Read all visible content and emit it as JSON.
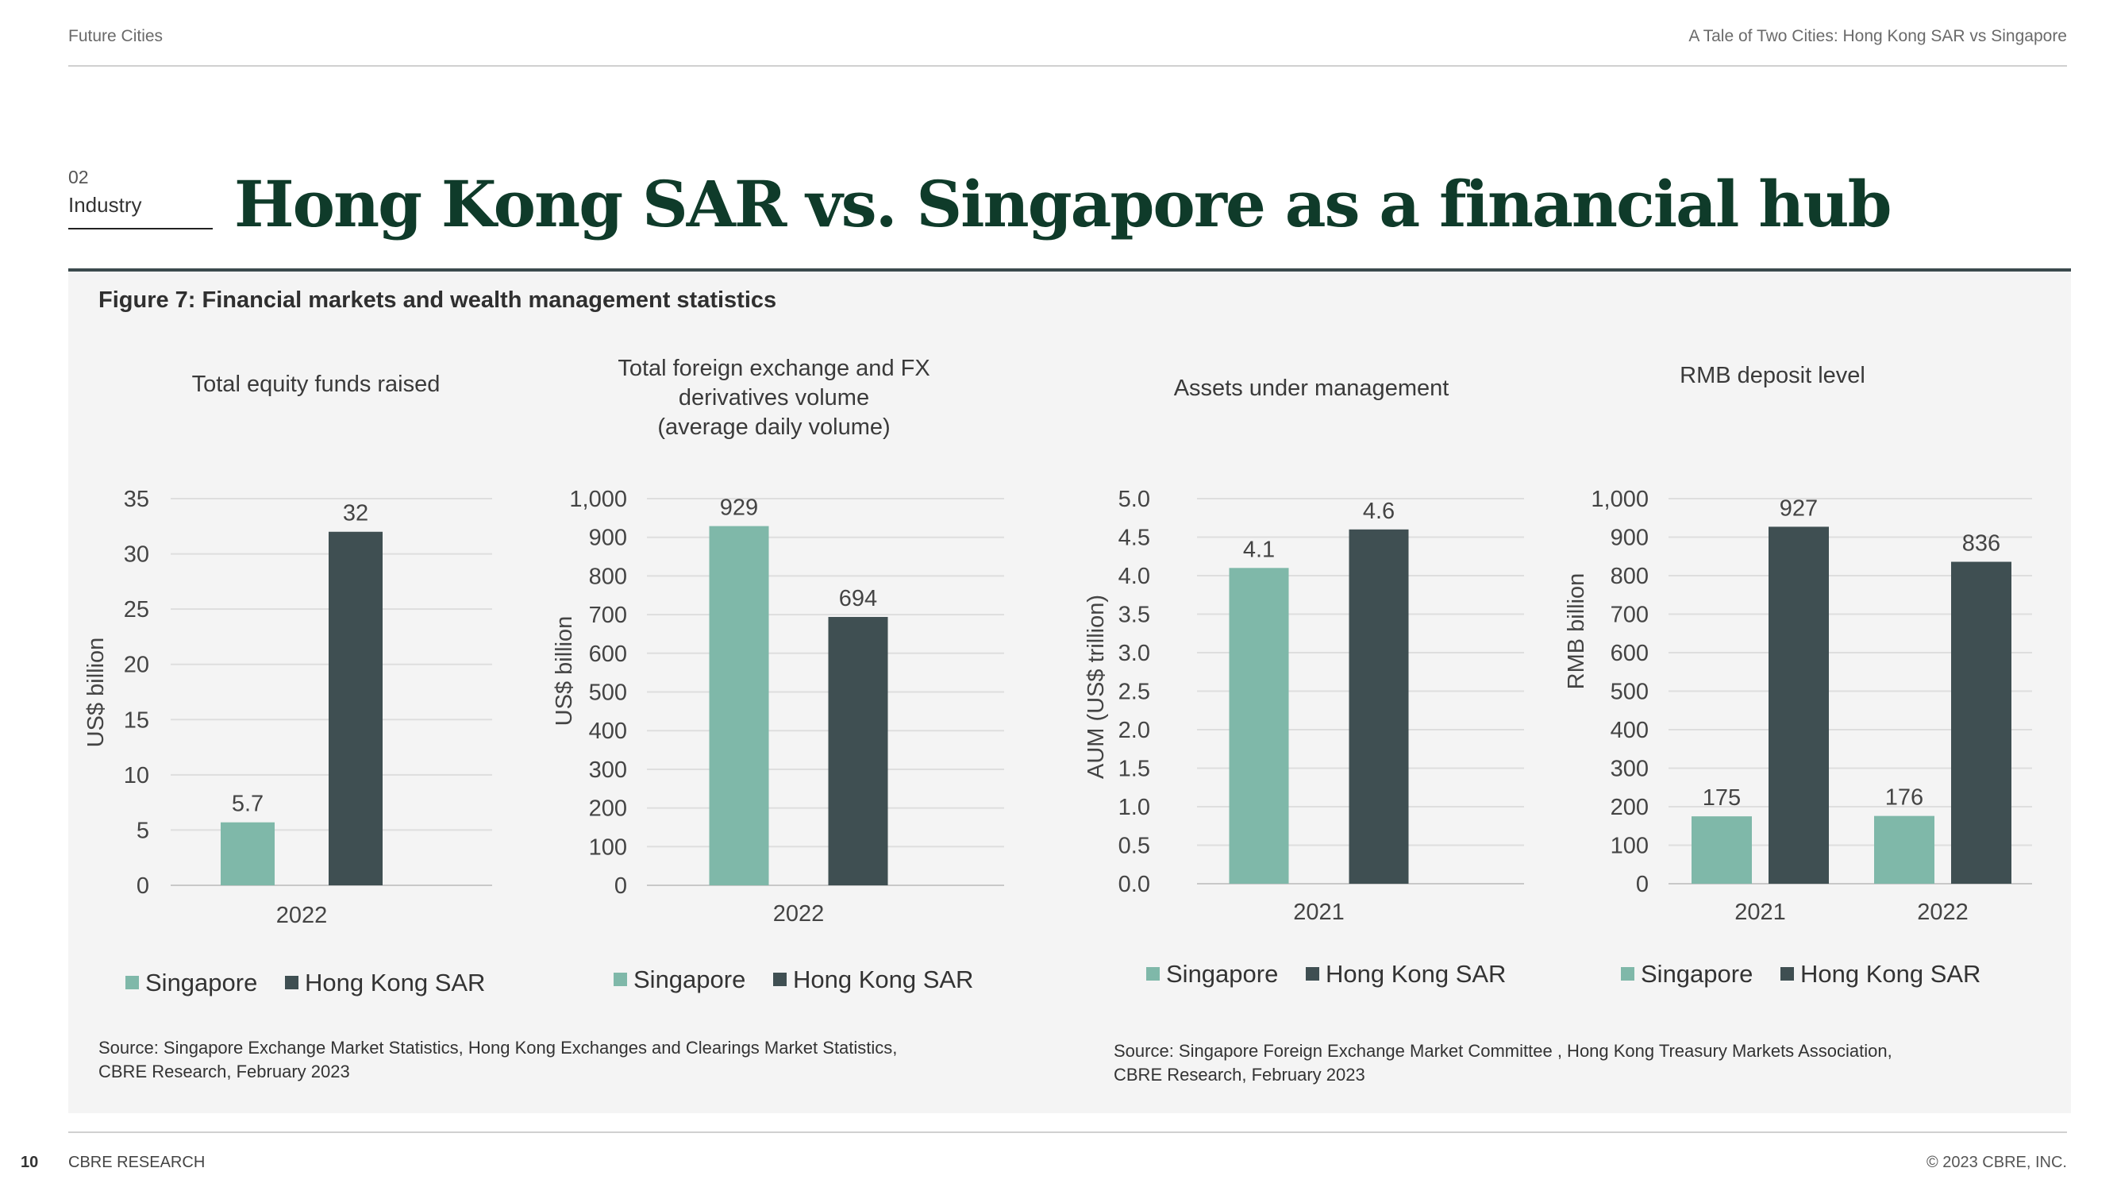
{
  "header": {
    "left": "Future Cities",
    "right": "A Tale of Two Cities: Hong Kong SAR vs Singapore"
  },
  "section": {
    "number": "02",
    "name": "Industry"
  },
  "title": "Hong Kong SAR vs. Singapore as a financial hub",
  "figure_caption": "Figure 7: Financial markets and wealth management statistics",
  "colors": {
    "singapore": "#7fb8a9",
    "hong_kong": "#3f4f52"
  },
  "chart_data": [
    {
      "type": "bar",
      "title": "Total equity funds raised",
      "ylabel": "US$ billion",
      "categories": [
        "2022"
      ],
      "ylim": [
        0,
        35
      ],
      "yticks": [
        "0",
        "5",
        "10",
        "15",
        "20",
        "25",
        "30",
        "35"
      ],
      "series": [
        {
          "name": "Singapore",
          "values": [
            5.7
          ],
          "labels": [
            "5.7"
          ]
        },
        {
          "name": "Hong Kong SAR",
          "values": [
            32
          ],
          "labels": [
            "32"
          ]
        }
      ],
      "legend": "bottom"
    },
    {
      "type": "bar",
      "title": "Total foreign exchange and FX\nderivatives volume\n(average daily volume)",
      "ylabel": "US$ billion",
      "categories": [
        "2022"
      ],
      "ylim": [
        0,
        1000
      ],
      "yticks": [
        "0",
        "100",
        "200",
        "300",
        "400",
        "500",
        "600",
        "700",
        "800",
        "900",
        "1,000"
      ],
      "series": [
        {
          "name": "Singapore",
          "values": [
            929
          ],
          "labels": [
            "929"
          ]
        },
        {
          "name": "Hong Kong SAR",
          "values": [
            694
          ],
          "labels": [
            "694"
          ]
        }
      ],
      "legend": "bottom"
    },
    {
      "type": "bar",
      "title": "Assets under management",
      "ylabel": "AUM (US$ trillion)",
      "categories": [
        "2021"
      ],
      "ylim": [
        0,
        5
      ],
      "yticks": [
        "0.0",
        "0.5",
        "1.0",
        "1.5",
        "2.0",
        "2.5",
        "3.0",
        "3.5",
        "4.0",
        "4.5",
        "5.0"
      ],
      "series": [
        {
          "name": "Singapore",
          "values": [
            4.1
          ],
          "labels": [
            "4.1"
          ]
        },
        {
          "name": "Hong Kong SAR",
          "values": [
            4.6
          ],
          "labels": [
            "4.6"
          ]
        }
      ],
      "legend": "bottom"
    },
    {
      "type": "bar",
      "title": "RMB deposit level",
      "ylabel": "RMB billion",
      "categories": [
        "2021",
        "2022"
      ],
      "ylim": [
        0,
        1000
      ],
      "yticks": [
        "0",
        "100",
        "200",
        "300",
        "400",
        "500",
        "600",
        "700",
        "800",
        "900",
        "1,000"
      ],
      "series": [
        {
          "name": "Singapore",
          "values": [
            175,
            176
          ],
          "labels": [
            "175",
            "176"
          ]
        },
        {
          "name": "Hong Kong SAR",
          "values": [
            927,
            836
          ],
          "labels": [
            "927",
            "836"
          ]
        }
      ],
      "legend": "bottom"
    }
  ],
  "sources": {
    "left": "Source: Singapore Exchange Market Statistics, Hong Kong Exchanges and Clearings Market Statistics,\nCBRE Research, February 2023",
    "right": "Source: Singapore Foreign Exchange Market Committee , Hong Kong Treasury Markets Association,\nCBRE Research, February 2023"
  },
  "footer": {
    "page_number": "10",
    "left": "CBRE RESEARCH",
    "right": "© 2023 CBRE, INC."
  }
}
